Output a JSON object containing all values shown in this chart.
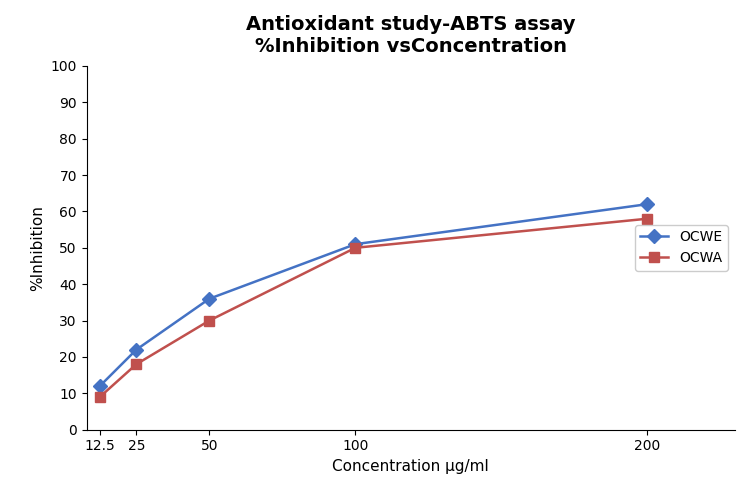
{
  "title": "Antioxidant study-ABTS assay\n%Inhibition vsConcentration",
  "xlabel": "Concentration µg/ml",
  "ylabel": "%Inhibition",
  "x_values": [
    12.5,
    25,
    50,
    100,
    200
  ],
  "ocwe_values": [
    12,
    22,
    36,
    51,
    62
  ],
  "ocwa_values": [
    9,
    18,
    30,
    50,
    58
  ],
  "ocwe_color": "#4472C4",
  "ocwa_color": "#C0504D",
  "ocwe_label": "OCWE",
  "ocwa_label": "OCWA",
  "ylim": [
    0,
    100
  ],
  "yticks": [
    0,
    10,
    20,
    30,
    40,
    50,
    60,
    70,
    80,
    90,
    100
  ],
  "xticks": [
    12.5,
    25,
    50,
    100,
    200
  ],
  "background_color": "#ffffff",
  "plot_bg_color": "#ffffff",
  "title_fontsize": 14,
  "axis_label_fontsize": 11,
  "tick_fontsize": 10,
  "legend_fontsize": 10,
  "linewidth": 1.8,
  "markersize": 7
}
